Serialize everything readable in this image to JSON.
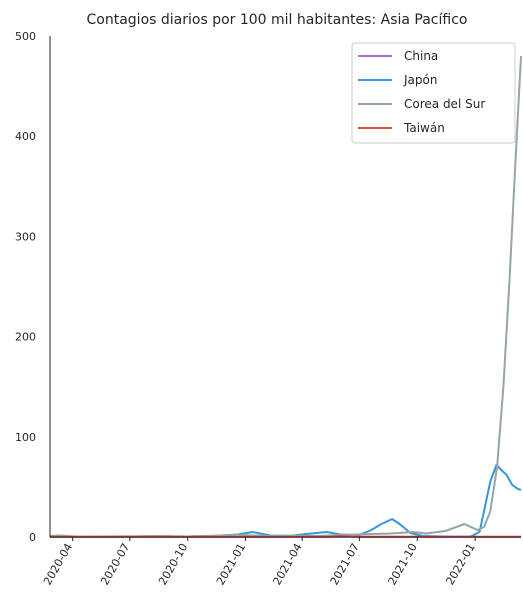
{
  "chart_data": {
    "type": "line",
    "title": "Contagios diarios por 100 mil habitantes: Asia Pacífico",
    "xlabel": "",
    "ylabel": "",
    "x_range": [
      "2020-02-25",
      "2022-03-15"
    ],
    "ylim": [
      0,
      500
    ],
    "y_ticks": [
      0,
      100,
      200,
      300,
      400,
      500
    ],
    "x_ticks": [
      "2020-04",
      "2020-07",
      "2020-10",
      "2021-01",
      "2021-04",
      "2021-07",
      "2021-10",
      "2022-01"
    ],
    "grid": false,
    "legend": {
      "position": "top-right"
    },
    "series": [
      {
        "name": "China",
        "color": "#a66fd0",
        "points": [
          [
            "2020-02-25",
            0.1
          ],
          [
            "2022-03-15",
            0.1
          ]
        ]
      },
      {
        "name": "Japón",
        "color": "#3498db",
        "points": [
          [
            "2020-02-25",
            0
          ],
          [
            "2020-04-15",
            0.3
          ],
          [
            "2020-06-01",
            0.2
          ],
          [
            "2020-08-05",
            0.8
          ],
          [
            "2020-09-15",
            0.3
          ],
          [
            "2020-11-15",
            1.3
          ],
          [
            "2020-12-20",
            2.5
          ],
          [
            "2021-01-12",
            5
          ],
          [
            "2021-02-10",
            1.5
          ],
          [
            "2021-03-15",
            1.2
          ],
          [
            "2021-04-15",
            3.5
          ],
          [
            "2021-05-10",
            5
          ],
          [
            "2021-06-01",
            2.5
          ],
          [
            "2021-07-01",
            2
          ],
          [
            "2021-07-20",
            7
          ],
          [
            "2021-08-05",
            13
          ],
          [
            "2021-08-22",
            18
          ],
          [
            "2021-09-05",
            12
          ],
          [
            "2021-09-20",
            4
          ],
          [
            "2021-10-10",
            1
          ],
          [
            "2021-12-01",
            0.2
          ],
          [
            "2021-12-25",
            0.5
          ],
          [
            "2022-01-08",
            5
          ],
          [
            "2022-01-15",
            25
          ],
          [
            "2022-01-25",
            55
          ],
          [
            "2022-02-04",
            72
          ],
          [
            "2022-02-10",
            68
          ],
          [
            "2022-02-20",
            62
          ],
          [
            "2022-03-01",
            52
          ],
          [
            "2022-03-10",
            48
          ],
          [
            "2022-03-15",
            47
          ]
        ]
      },
      {
        "name": "Corea del Sur",
        "color": "#95a5a6",
        "points": [
          [
            "2020-02-25",
            1
          ],
          [
            "2020-03-10",
            1.5
          ],
          [
            "2020-04-15",
            0.3
          ],
          [
            "2020-08-25",
            1
          ],
          [
            "2020-10-01",
            0.5
          ],
          [
            "2020-12-20",
            2
          ],
          [
            "2021-02-15",
            1
          ],
          [
            "2021-05-01",
            1.3
          ],
          [
            "2021-07-20",
            3
          ],
          [
            "2021-08-20",
            3.5
          ],
          [
            "2021-09-25",
            5
          ],
          [
            "2021-10-15",
            3.5
          ],
          [
            "2021-11-15",
            6
          ],
          [
            "2021-12-15",
            13
          ],
          [
            "2022-01-05",
            7
          ],
          [
            "2022-01-15",
            10
          ],
          [
            "2022-01-25",
            25
          ],
          [
            "2022-02-05",
            70
          ],
          [
            "2022-02-15",
            150
          ],
          [
            "2022-02-25",
            260
          ],
          [
            "2022-03-05",
            360
          ],
          [
            "2022-03-15",
            480
          ]
        ]
      },
      {
        "name": "Taiwán",
        "color": "#e74c3c",
        "points": [
          [
            "2020-02-25",
            0.1
          ],
          [
            "2021-05-15",
            0.2
          ],
          [
            "2021-06-01",
            1
          ],
          [
            "2021-06-25",
            0.3
          ],
          [
            "2022-03-15",
            0.3
          ]
        ]
      }
    ]
  }
}
